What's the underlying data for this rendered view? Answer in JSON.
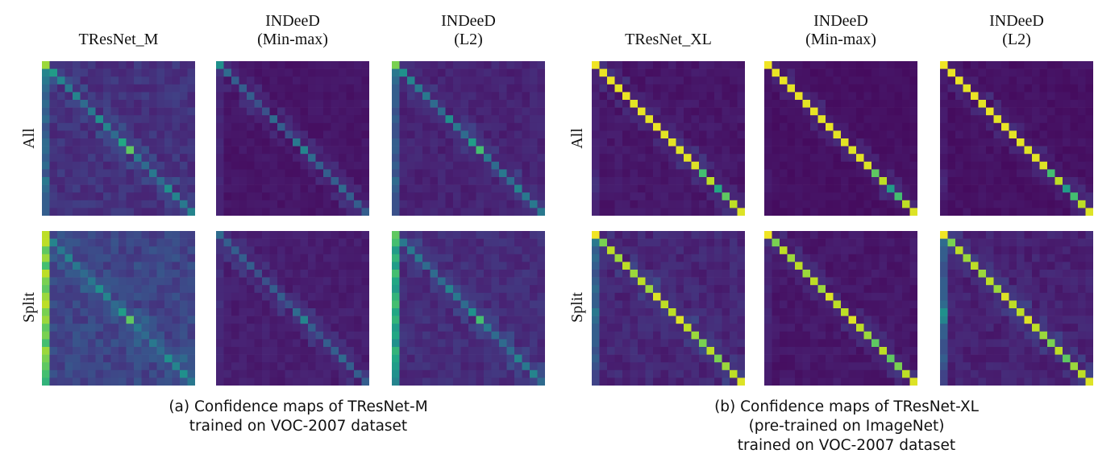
{
  "groups": [
    {
      "caption": "(a)  Confidence maps of TResNet-M\ntrained on VOC-2007 dataset",
      "rows": [
        "All",
        "Split"
      ],
      "columns": [
        "TResNet_M",
        "INDeeD\n(Min-max)",
        "INDeeD\n(L2)"
      ]
    },
    {
      "caption": "(b) Confidence maps of TResNet-XL\n(pre-trained on ImageNet)\ntrained on VOC-2007 dataset",
      "rows": [
        "All",
        "Split"
      ],
      "columns": [
        "TResNet_XL",
        "INDeeD\n(Min-max)",
        "INDeeD\n(L2)"
      ]
    }
  ],
  "chart_data": [
    {
      "type": "heatmap",
      "group": 0,
      "row": "All",
      "column": "TResNet_M",
      "size": 20,
      "colormap": "viridis",
      "diagonal": [
        0.85,
        0.55,
        0.45,
        0.4,
        0.45,
        0.35,
        0.4,
        0.5,
        0.45,
        0.35,
        0.6,
        0.75,
        0.4,
        0.35,
        0.4,
        0.35,
        0.5,
        0.45,
        0.4,
        0.45
      ],
      "first_column": [
        0.85,
        0.45,
        0.4,
        0.35,
        0.3,
        0.35,
        0.3,
        0.35,
        0.25,
        0.3,
        0.35,
        0.35,
        0.3,
        0.35,
        0.25,
        0.4,
        0.35,
        0.3,
        0.3,
        0.3
      ],
      "background": 0.1,
      "noise": 0.09
    },
    {
      "type": "heatmap",
      "group": 0,
      "row": "All",
      "column": "INDeeD\n(Min-max)",
      "size": 20,
      "colormap": "viridis",
      "diagonal": [
        0.5,
        0.35,
        0.3,
        0.3,
        0.3,
        0.25,
        0.25,
        0.35,
        0.3,
        0.25,
        0.4,
        0.45,
        0.35,
        0.3,
        0.3,
        0.3,
        0.35,
        0.3,
        0.3,
        0.3
      ],
      "first_column": [
        0.5,
        0.15,
        0.12,
        0.12,
        0.1,
        0.12,
        0.1,
        0.12,
        0.1,
        0.1,
        0.12,
        0.12,
        0.1,
        0.1,
        0.1,
        0.12,
        0.1,
        0.1,
        0.1,
        0.1
      ],
      "background": 0.04,
      "noise": 0.04
    },
    {
      "type": "heatmap",
      "group": 0,
      "row": "All",
      "column": "INDeeD\n(L2)",
      "size": 20,
      "colormap": "viridis",
      "diagonal": [
        0.8,
        0.5,
        0.45,
        0.4,
        0.4,
        0.35,
        0.35,
        0.5,
        0.4,
        0.35,
        0.55,
        0.7,
        0.4,
        0.35,
        0.4,
        0.35,
        0.45,
        0.4,
        0.4,
        0.4
      ],
      "first_column": [
        0.8,
        0.4,
        0.35,
        0.3,
        0.3,
        0.3,
        0.25,
        0.3,
        0.25,
        0.25,
        0.3,
        0.3,
        0.25,
        0.3,
        0.25,
        0.35,
        0.3,
        0.25,
        0.25,
        0.25
      ],
      "background": 0.07,
      "noise": 0.06
    },
    {
      "type": "heatmap",
      "group": 0,
      "row": "Split",
      "column": "TResNet_M",
      "size": 20,
      "colormap": "viridis",
      "diagonal": [
        0.9,
        0.45,
        0.4,
        0.45,
        0.4,
        0.35,
        0.4,
        0.5,
        0.45,
        0.35,
        0.55,
        0.75,
        0.4,
        0.35,
        0.4,
        0.35,
        0.5,
        0.45,
        0.5,
        0.4
      ],
      "first_column": [
        0.95,
        0.9,
        0.75,
        0.85,
        0.7,
        0.9,
        0.8,
        0.75,
        0.85,
        0.9,
        0.8,
        0.85,
        0.75,
        0.8,
        0.7,
        0.85,
        0.8,
        0.75,
        0.7,
        0.65
      ],
      "background": 0.15,
      "noise": 0.12
    },
    {
      "type": "heatmap",
      "group": 0,
      "row": "Split",
      "column": "INDeeD\n(Min-max)",
      "size": 20,
      "colormap": "viridis",
      "diagonal": [
        0.35,
        0.3,
        0.3,
        0.3,
        0.3,
        0.25,
        0.25,
        0.3,
        0.3,
        0.25,
        0.35,
        0.45,
        0.3,
        0.25,
        0.3,
        0.3,
        0.35,
        0.3,
        0.3,
        0.3
      ],
      "first_column": [
        0.3,
        0.15,
        0.15,
        0.12,
        0.12,
        0.15,
        0.12,
        0.12,
        0.12,
        0.15,
        0.12,
        0.12,
        0.12,
        0.12,
        0.1,
        0.12,
        0.12,
        0.1,
        0.1,
        0.1
      ],
      "background": 0.06,
      "noise": 0.05
    },
    {
      "type": "heatmap",
      "group": 0,
      "row": "Split",
      "column": "INDeeD\n(L2)",
      "size": 20,
      "colormap": "viridis",
      "diagonal": [
        0.75,
        0.4,
        0.4,
        0.4,
        0.35,
        0.35,
        0.35,
        0.45,
        0.4,
        0.35,
        0.5,
        0.7,
        0.4,
        0.35,
        0.35,
        0.35,
        0.45,
        0.4,
        0.45,
        0.35
      ],
      "first_column": [
        0.8,
        0.7,
        0.55,
        0.65,
        0.55,
        0.7,
        0.6,
        0.55,
        0.65,
        0.7,
        0.6,
        0.65,
        0.55,
        0.6,
        0.5,
        0.65,
        0.6,
        0.55,
        0.5,
        0.45
      ],
      "background": 0.09,
      "noise": 0.08
    },
    {
      "type": "heatmap",
      "group": 1,
      "row": "All",
      "column": "TResNet_XL",
      "size": 20,
      "colormap": "viridis",
      "diagonal": [
        0.98,
        0.97,
        0.97,
        0.96,
        0.97,
        0.96,
        0.97,
        0.96,
        0.97,
        0.96,
        0.96,
        0.95,
        0.96,
        0.95,
        0.7,
        0.9,
        0.6,
        0.75,
        0.9,
        0.95
      ],
      "first_column": [
        0.98,
        0.1,
        0.1,
        0.08,
        0.1,
        0.08,
        0.1,
        0.1,
        0.1,
        0.08,
        0.1,
        0.1,
        0.1,
        0.1,
        0.12,
        0.15,
        0.15,
        0.12,
        0.1,
        0.1
      ],
      "background": 0.04,
      "noise": 0.05
    },
    {
      "type": "heatmap",
      "group": 1,
      "row": "All",
      "column": "INDeeD\n(Min-max)",
      "size": 20,
      "colormap": "viridis",
      "diagonal": [
        0.98,
        0.97,
        0.97,
        0.96,
        0.97,
        0.96,
        0.97,
        0.96,
        0.97,
        0.96,
        0.96,
        0.95,
        0.96,
        0.95,
        0.75,
        0.9,
        0.55,
        0.7,
        0.9,
        0.95
      ],
      "first_column": [
        0.98,
        0.06,
        0.06,
        0.05,
        0.06,
        0.05,
        0.06,
        0.06,
        0.05,
        0.05,
        0.06,
        0.06,
        0.05,
        0.05,
        0.08,
        0.08,
        0.08,
        0.06,
        0.05,
        0.05
      ],
      "background": 0.03,
      "noise": 0.03
    },
    {
      "type": "heatmap",
      "group": 1,
      "row": "All",
      "column": "INDeeD\n(L2)",
      "size": 20,
      "colormap": "viridis",
      "diagonal": [
        0.98,
        0.97,
        0.97,
        0.96,
        0.97,
        0.96,
        0.97,
        0.96,
        0.97,
        0.96,
        0.96,
        0.95,
        0.96,
        0.95,
        0.7,
        0.9,
        0.55,
        0.7,
        0.9,
        0.95
      ],
      "first_column": [
        0.98,
        0.08,
        0.08,
        0.06,
        0.08,
        0.06,
        0.08,
        0.08,
        0.06,
        0.06,
        0.08,
        0.08,
        0.06,
        0.06,
        0.1,
        0.12,
        0.1,
        0.08,
        0.06,
        0.06
      ],
      "background": 0.03,
      "noise": 0.04
    },
    {
      "type": "heatmap",
      "group": 1,
      "row": "Split",
      "column": "TResNet_XL",
      "size": 20,
      "colormap": "viridis",
      "diagonal": [
        0.98,
        0.8,
        0.9,
        0.85,
        0.9,
        0.85,
        0.9,
        0.85,
        0.95,
        0.9,
        0.9,
        0.95,
        0.9,
        0.85,
        0.8,
        0.9,
        0.8,
        0.85,
        0.9,
        0.95
      ],
      "first_column": [
        0.95,
        0.4,
        0.3,
        0.35,
        0.3,
        0.25,
        0.3,
        0.35,
        0.3,
        0.3,
        0.4,
        0.35,
        0.3,
        0.3,
        0.3,
        0.25,
        0.3,
        0.25,
        0.2,
        0.2
      ],
      "background": 0.07,
      "noise": 0.08
    },
    {
      "type": "heatmap",
      "group": 1,
      "row": "Split",
      "column": "INDeeD\n(Min-max)",
      "size": 20,
      "colormap": "viridis",
      "diagonal": [
        0.98,
        0.8,
        0.9,
        0.85,
        0.9,
        0.85,
        0.9,
        0.85,
        0.95,
        0.9,
        0.9,
        0.95,
        0.9,
        0.85,
        0.75,
        0.9,
        0.75,
        0.8,
        0.9,
        0.95
      ],
      "first_column": [
        0.95,
        0.15,
        0.1,
        0.12,
        0.1,
        0.1,
        0.1,
        0.12,
        0.1,
        0.1,
        0.12,
        0.12,
        0.1,
        0.1,
        0.1,
        0.1,
        0.1,
        0.08,
        0.08,
        0.08
      ],
      "background": 0.04,
      "noise": 0.05
    },
    {
      "type": "heatmap",
      "group": 1,
      "row": "Split",
      "column": "INDeeD\n(L2)",
      "size": 20,
      "colormap": "viridis",
      "diagonal": [
        0.98,
        0.8,
        0.9,
        0.85,
        0.9,
        0.85,
        0.9,
        0.85,
        0.95,
        0.9,
        0.9,
        0.95,
        0.9,
        0.85,
        0.8,
        0.9,
        0.75,
        0.85,
        0.9,
        0.95
      ],
      "first_column": [
        0.95,
        0.35,
        0.3,
        0.3,
        0.25,
        0.25,
        0.3,
        0.3,
        0.3,
        0.35,
        0.5,
        0.45,
        0.3,
        0.3,
        0.25,
        0.25,
        0.3,
        0.25,
        0.2,
        0.2
      ],
      "background": 0.06,
      "noise": 0.07
    }
  ]
}
